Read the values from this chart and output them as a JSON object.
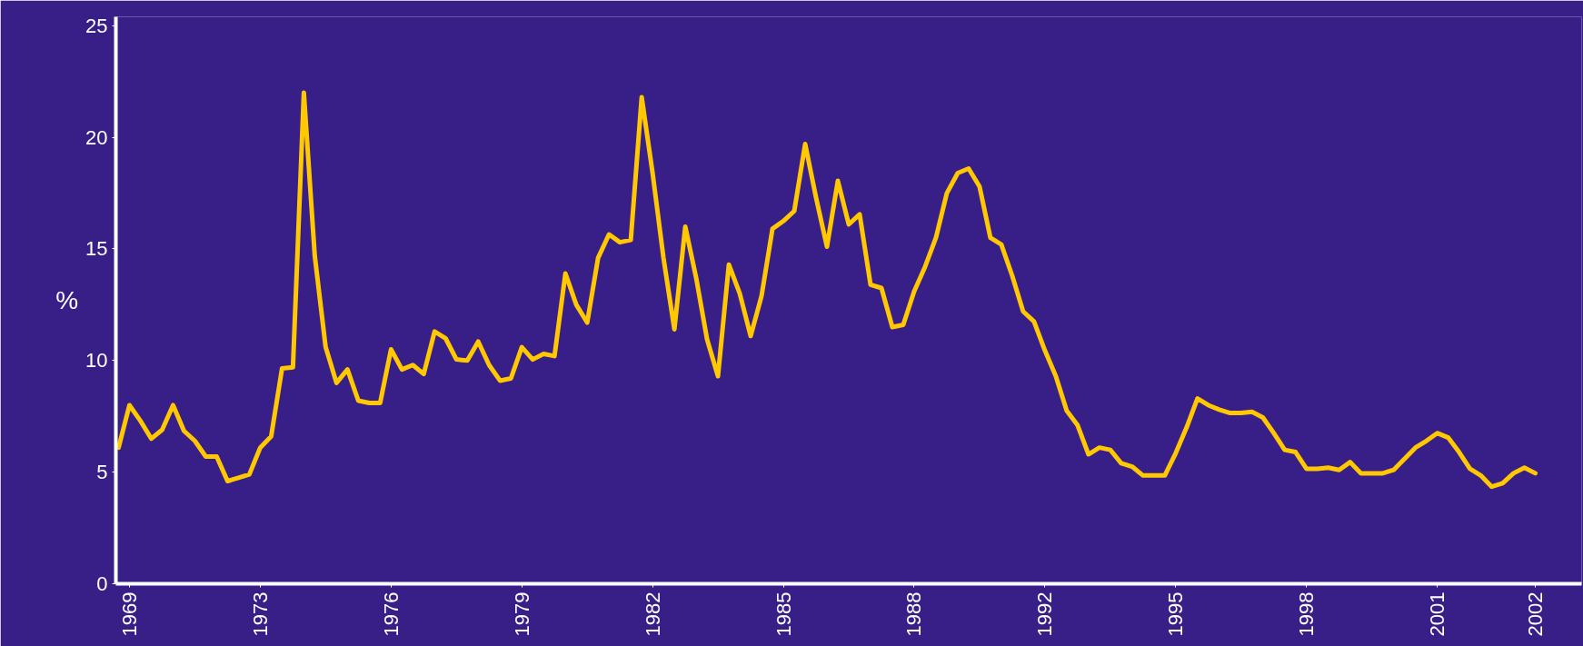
{
  "chart_data": {
    "type": "line",
    "ylabel": "%",
    "ylim": [
      0,
      25.4
    ],
    "yticks": [
      0,
      5,
      10,
      15,
      20,
      25
    ],
    "grid": false,
    "line_style": "solid",
    "categories": [
      null,
      "1969",
      null,
      null,
      null,
      null,
      null,
      null,
      null,
      null,
      null,
      null,
      null,
      "1973",
      null,
      null,
      null,
      null,
      null,
      null,
      null,
      null,
      null,
      null,
      null,
      "1976",
      null,
      null,
      null,
      null,
      null,
      null,
      null,
      null,
      null,
      null,
      null,
      "1979",
      null,
      null,
      null,
      null,
      null,
      null,
      null,
      null,
      null,
      null,
      null,
      "1982",
      null,
      null,
      null,
      null,
      null,
      null,
      null,
      null,
      null,
      null,
      null,
      "1985",
      null,
      null,
      null,
      null,
      null,
      null,
      null,
      null,
      null,
      null,
      null,
      "1988",
      null,
      null,
      null,
      null,
      null,
      null,
      null,
      null,
      null,
      null,
      null,
      "1992",
      null,
      null,
      null,
      null,
      null,
      null,
      null,
      null,
      null,
      null,
      null,
      "1995",
      null,
      null,
      null,
      null,
      null,
      null,
      null,
      null,
      null,
      null,
      null,
      "1998",
      null,
      null,
      null,
      null,
      null,
      null,
      null,
      null,
      null,
      null,
      null,
      "2001",
      null,
      null,
      null,
      null,
      null,
      null,
      null,
      null,
      "2002"
    ],
    "series": [
      {
        "color": "#ffc800",
        "values": [
          6.1,
          8.0,
          7.3,
          6.5,
          6.9,
          8.0,
          6.85,
          6.4,
          5.7,
          5.7,
          4.6,
          4.75,
          4.9,
          6.1,
          6.6,
          9.65,
          9.7,
          22.0,
          14.7,
          10.6,
          9.0,
          9.6,
          8.2,
          8.1,
          8.1,
          10.5,
          9.6,
          9.8,
          9.4,
          11.3,
          11.0,
          10.05,
          10.0,
          10.85,
          9.8,
          9.1,
          9.2,
          10.6,
          10.05,
          10.3,
          10.2,
          13.9,
          12.5,
          11.7,
          14.6,
          15.65,
          15.3,
          15.4,
          21.8,
          18.4,
          14.6,
          11.4,
          16.0,
          13.7,
          10.95,
          9.3,
          14.3,
          13.0,
          11.1,
          12.9,
          15.9,
          16.25,
          16.7,
          19.7,
          17.3,
          15.1,
          18.05,
          16.1,
          16.55,
          13.4,
          13.25,
          11.5,
          11.6,
          13.1,
          14.2,
          15.5,
          17.5,
          18.4,
          18.6,
          17.8,
          15.5,
          15.2,
          13.8,
          12.2,
          11.75,
          10.45,
          9.3,
          7.75,
          7.1,
          5.8,
          6.1,
          6.0,
          5.4,
          5.25,
          4.85,
          4.85,
          4.85,
          5.85,
          7.0,
          8.3,
          8.0,
          7.8,
          7.65,
          7.65,
          7.7,
          7.45,
          6.75,
          6.0,
          5.9,
          5.15,
          5.15,
          5.2,
          5.1,
          5.45,
          4.95,
          4.95,
          4.95,
          5.1,
          5.6,
          6.1,
          6.4,
          6.75,
          6.55,
          5.9,
          5.15,
          4.85,
          4.35,
          4.5,
          4.95,
          5.2,
          4.95
        ]
      }
    ]
  }
}
